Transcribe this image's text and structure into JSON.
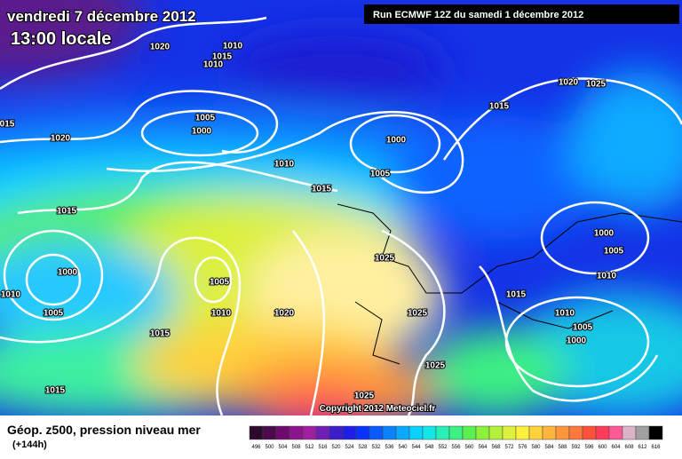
{
  "header": {
    "date": "vendredi 7 décembre 2012",
    "time": "13:00 locale",
    "run": "Run ECMWF 12Z du samedi 1 décembre 2012",
    "copyright": "Copyright 2012 Meteociel.fr"
  },
  "isobar_labels": [
    "1020",
    "1010",
    "1015",
    "1010",
    "015",
    "1020",
    "1005",
    "1000",
    "1010",
    "1015",
    "1000",
    "1005",
    "1020",
    "1025",
    "1015",
    "1015",
    "1000",
    "1010",
    "1005",
    "1005",
    "1010",
    "1020",
    "1015",
    "1015",
    "1025",
    "1025",
    "1025",
    "1025",
    "1015",
    "1000",
    "1005",
    "1010",
    "1010",
    "1005",
    "1000"
  ],
  "legend": {
    "title": "Géop. z500, pression niveau mer",
    "lead": "(+144h)",
    "values": [
      496,
      500,
      504,
      508,
      512,
      516,
      520,
      524,
      528,
      532,
      536,
      540,
      544,
      548,
      552,
      556,
      560,
      564,
      568,
      572,
      576,
      580,
      584,
      588,
      592,
      596,
      600,
      604,
      608,
      612,
      616
    ],
    "colors": [
      "#2d0a2d",
      "#4b0a4b",
      "#6e0a6e",
      "#8c148c",
      "#a01ea0",
      "#6e1eb4",
      "#3c1ec8",
      "#1e1ee6",
      "#0a32ff",
      "#0a5aff",
      "#0a82ff",
      "#0aaaff",
      "#0ad2ff",
      "#14e6e6",
      "#28f0b4",
      "#3cf082",
      "#5af050",
      "#8cf03c",
      "#b4f03c",
      "#dcf03c",
      "#fff03c",
      "#ffd23c",
      "#ffb43c",
      "#ff963c",
      "#ff783c",
      "#ff503c",
      "#ff3c5a",
      "#ff5a96",
      "#dcb4c8",
      "#a0a0a0",
      "#000000"
    ]
  }
}
